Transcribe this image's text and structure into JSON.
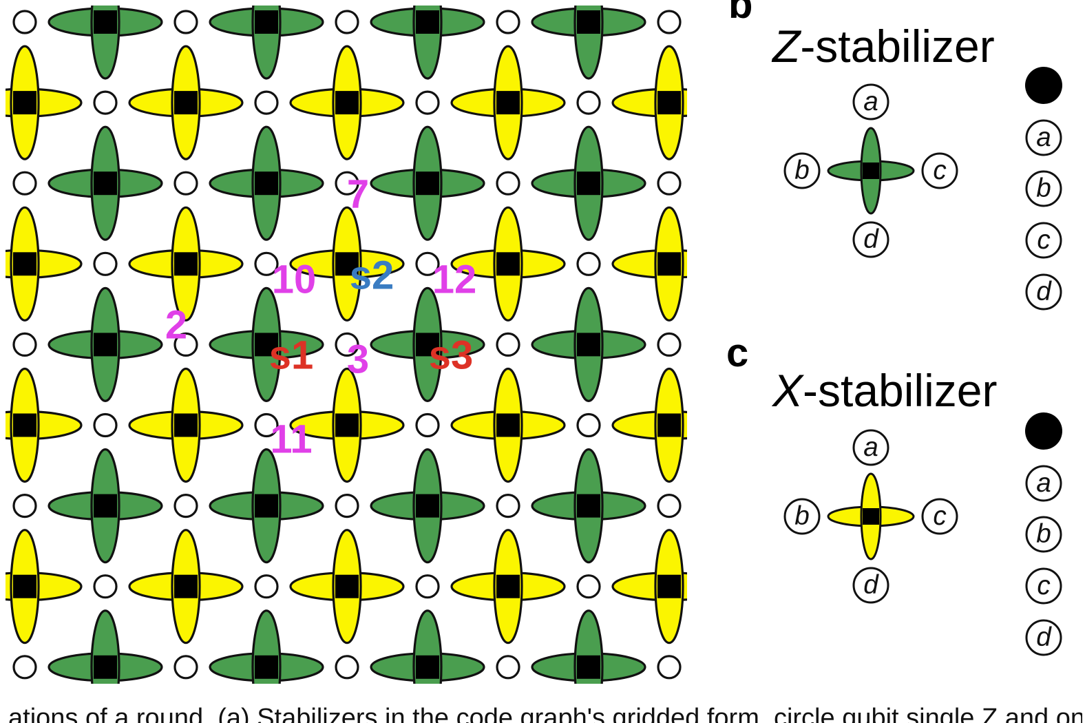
{
  "colors": {
    "z_arm": "#4a9e4f",
    "x_arm": "#fbf500",
    "node": "#000000",
    "outline": "#111111",
    "open_qubit": "#ffffff",
    "label_magenta": "#e040e8",
    "label_blue": "#3a7cc2",
    "label_red": "#dd3226"
  },
  "lattice": {
    "legend_glyph": "filled-circle",
    "labels": [
      {
        "text": "7",
        "color": "magenta"
      },
      {
        "text": "10",
        "color": "magenta"
      },
      {
        "text": "s2",
        "color": "blue"
      },
      {
        "text": "12",
        "color": "magenta"
      },
      {
        "text": "2",
        "color": "magenta"
      },
      {
        "text": "s1",
        "color": "red"
      },
      {
        "text": "3",
        "color": "magenta"
      },
      {
        "text": "s3",
        "color": "red"
      },
      {
        "text": "11",
        "color": "magenta"
      }
    ]
  },
  "panel_b": {
    "letter": "b",
    "title_italic": "Z",
    "title_rest": "-stabilizer",
    "qubits": [
      "a",
      "b",
      "c",
      "d"
    ],
    "legend": [
      "a",
      "b",
      "c",
      "d"
    ]
  },
  "panel_c": {
    "letter": "c",
    "title_italic": "X",
    "title_rest": "-stabilizer",
    "qubits": [
      "a",
      "b",
      "c",
      "d"
    ],
    "legend": [
      "a",
      "b",
      "c",
      "d"
    ]
  },
  "caption": "ations of a round. (a) Stabilizers in the code graph's gridded form, circle qubit single Z and one graph"
}
